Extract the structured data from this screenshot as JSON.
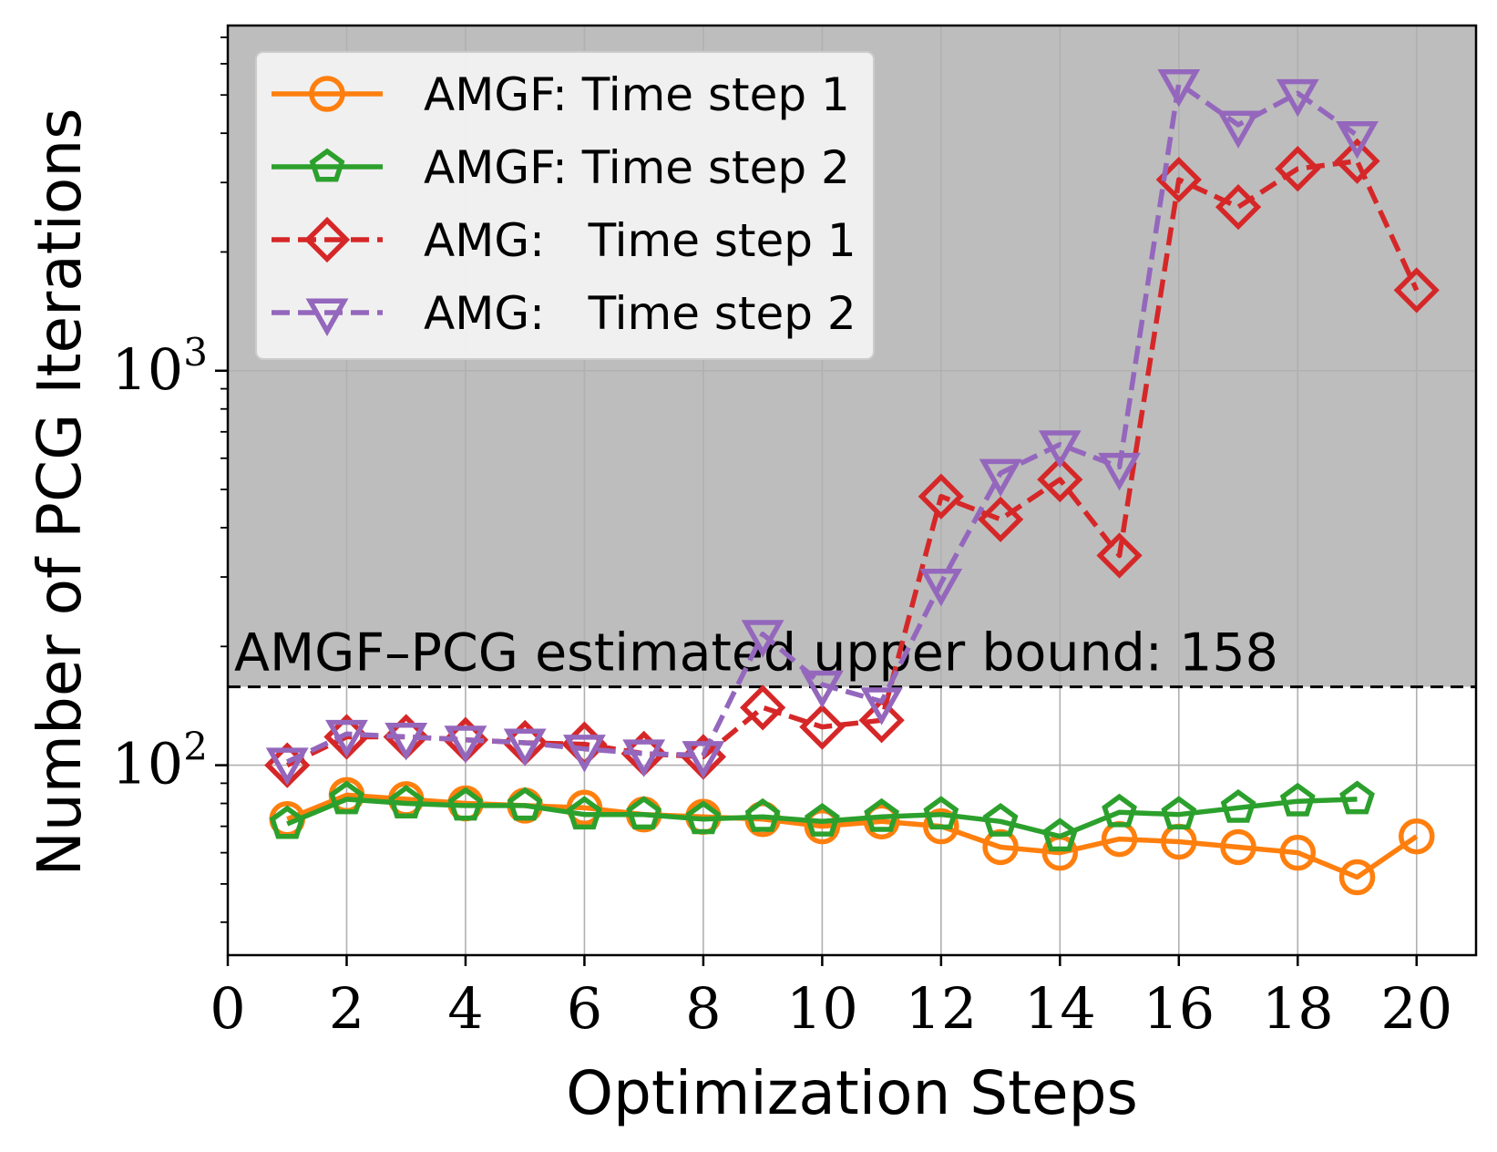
{
  "chart_data": {
    "type": "line",
    "title": "",
    "xlabel": "Optimization Steps",
    "ylabel": "Number of PCG Iterations",
    "xlim": [
      0,
      21
    ],
    "ylim": [
      33,
      7500
    ],
    "yscale": "log",
    "xticks": [
      0,
      2,
      4,
      6,
      8,
      10,
      12,
      14,
      16,
      18,
      20
    ],
    "xtick_labels": [
      "0",
      "2",
      "4",
      "6",
      "8",
      "10",
      "12",
      "14",
      "16",
      "18",
      "20"
    ],
    "yticks_major": [
      {
        "value": 100,
        "base": "10",
        "exp": "2"
      },
      {
        "value": 1000,
        "base": "10",
        "exp": "3"
      }
    ],
    "grid": true,
    "legend_position": "top-left",
    "upper_bound": {
      "value": 158,
      "label": "AMGF–PCG estimated upper bound: 158",
      "shaded_region": "above"
    },
    "series": [
      {
        "name": "AMGF: Time step 1",
        "color": "#ff7f0e",
        "marker": "circle",
        "linestyle": "solid",
        "x": [
          1,
          2,
          3,
          4,
          5,
          6,
          7,
          8,
          9,
          10,
          11,
          12,
          13,
          14,
          15,
          16,
          17,
          18,
          19,
          20
        ],
        "values": [
          73,
          84,
          82,
          80,
          79,
          78,
          75,
          74,
          73,
          70,
          72,
          70,
          62,
          60,
          65,
          64,
          62,
          60,
          52,
          66
        ]
      },
      {
        "name": "AMGF: Time step 2",
        "color": "#2ca02c",
        "marker": "pentagon",
        "linestyle": "solid",
        "x": [
          1,
          2,
          3,
          4,
          5,
          6,
          7,
          8,
          9,
          10,
          11,
          12,
          13,
          14,
          15,
          16,
          17,
          18,
          19
        ],
        "values": [
          71,
          82,
          80,
          79,
          79,
          75,
          75,
          73,
          74,
          72,
          74,
          75,
          72,
          66,
          76,
          75,
          78,
          81,
          82
        ]
      },
      {
        "name": "AMG:   Time step 1",
        "color": "#d62728",
        "marker": "diamond",
        "linestyle": "dashed",
        "x": [
          1,
          2,
          3,
          4,
          5,
          6,
          7,
          8,
          9,
          10,
          11,
          12,
          13,
          14,
          15,
          16,
          17,
          18,
          19,
          20
        ],
        "values": [
          100,
          118,
          118,
          116,
          114,
          113,
          107,
          105,
          140,
          125,
          130,
          480,
          420,
          530,
          340,
          3050,
          2600,
          3250,
          3400,
          1600
        ]
      },
      {
        "name": "AMG:   Time step 2",
        "color": "#9467bd",
        "marker": "triangle-down",
        "linestyle": "dashed",
        "x": [
          1,
          2,
          3,
          4,
          5,
          6,
          7,
          8,
          9,
          10,
          11,
          12,
          13,
          14,
          15,
          16,
          17,
          18,
          19
        ],
        "values": [
          102,
          120,
          118,
          116,
          114,
          110,
          107,
          106,
          215,
          160,
          145,
          290,
          550,
          650,
          570,
          5350,
          4200,
          5050,
          3950
        ]
      }
    ]
  }
}
